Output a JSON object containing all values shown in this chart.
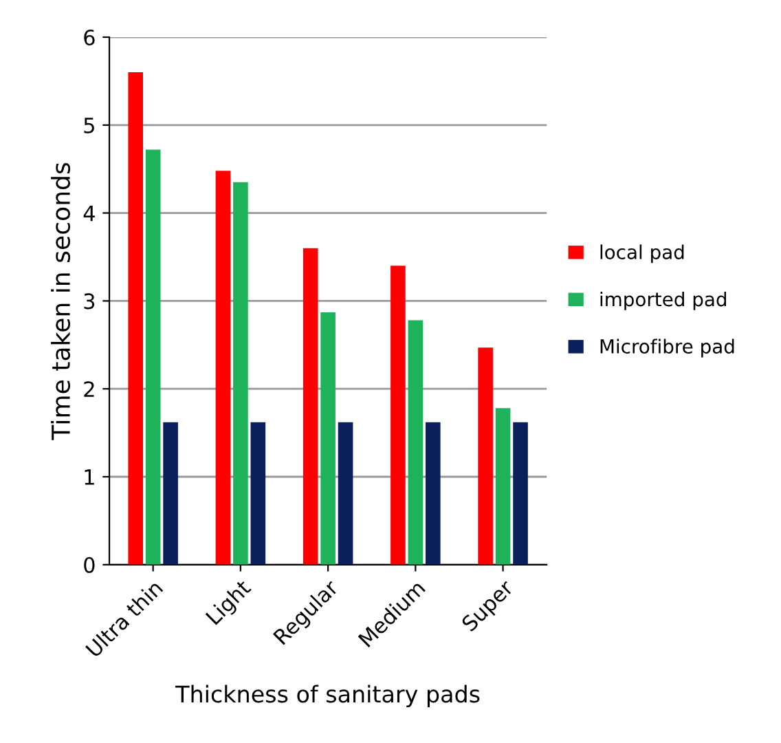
{
  "chart_data": {
    "type": "bar",
    "xlabel": "Thickness of sanitary pads",
    "ylabel": "Time taken in seconds",
    "categories": [
      "Ultra thin",
      "Light",
      "Regular",
      "Medium",
      "Super"
    ],
    "series": [
      {
        "name": "local pad",
        "color": "#ff0000",
        "values": [
          5.6,
          4.48,
          3.6,
          3.4,
          2.47
        ]
      },
      {
        "name": "imported pad",
        "color": "#1eb35a",
        "values": [
          4.72,
          4.35,
          2.87,
          2.78,
          1.78
        ]
      },
      {
        "name": "Microfibre pad",
        "color": "#0a1f5c",
        "values": [
          1.62,
          1.62,
          1.62,
          1.62,
          1.62
        ]
      }
    ],
    "ylim": [
      0,
      6
    ],
    "yticks": [
      0,
      1,
      2,
      3,
      4,
      5,
      6
    ],
    "grid": "y",
    "legend": "right"
  }
}
